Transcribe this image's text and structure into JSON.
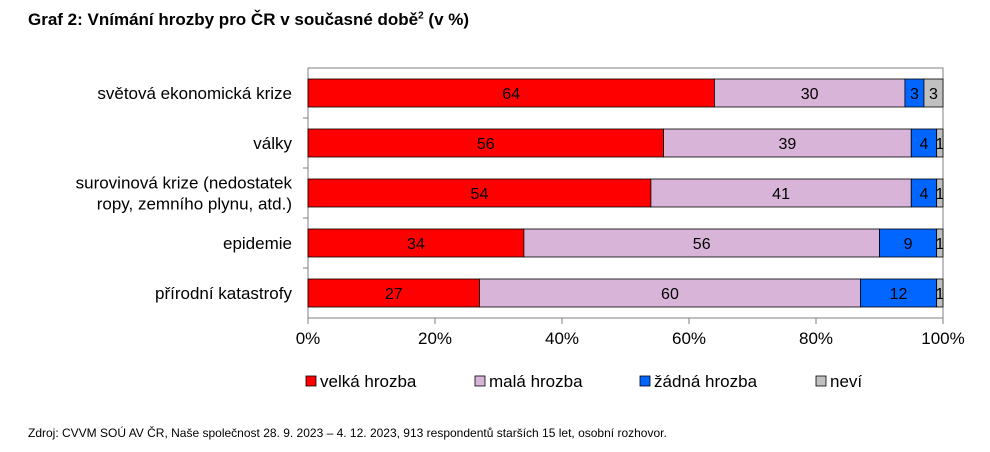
{
  "title": {
    "text": "Graf 2: Vnímání hrozby pro ČR v současné době",
    "sup": "2",
    "suffix": " (v %)"
  },
  "source": "Zdroj: CVVM SOÚ AV ČR, Naše společnost 28. 9. 2023 – 4. 12. 2023, 913 respondentů starších 15 let, osobní rozhovor.",
  "chart_data": {
    "type": "bar",
    "orientation": "horizontal",
    "stacked": true,
    "categories": [
      [
        "světová ekonomická krize"
      ],
      [
        "války"
      ],
      [
        "surovinová krize (nedostatek",
        "ropy, zemního plynu, atd.)"
      ],
      [
        "epidemie"
      ],
      [
        "přírodní katastrofy"
      ]
    ],
    "series": [
      {
        "name": "velká hrozba",
        "color": "#ff0000",
        "values": [
          64,
          56,
          54,
          34,
          27
        ]
      },
      {
        "name": "malá hrozba",
        "color": "#d8b4d8",
        "values": [
          30,
          39,
          41,
          56,
          60
        ]
      },
      {
        "name": "žádná hrozba",
        "color": "#0066ff",
        "values": [
          3,
          4,
          4,
          9,
          12
        ]
      },
      {
        "name": "neví",
        "color": "#c0c0c0",
        "values": [
          3,
          1,
          1,
          1,
          1
        ]
      }
    ],
    "xlim": [
      0,
      100
    ],
    "xticks": [
      "0%",
      "20%",
      "40%",
      "60%",
      "80%",
      "100%"
    ],
    "grid": false,
    "legend": "bottom"
  }
}
